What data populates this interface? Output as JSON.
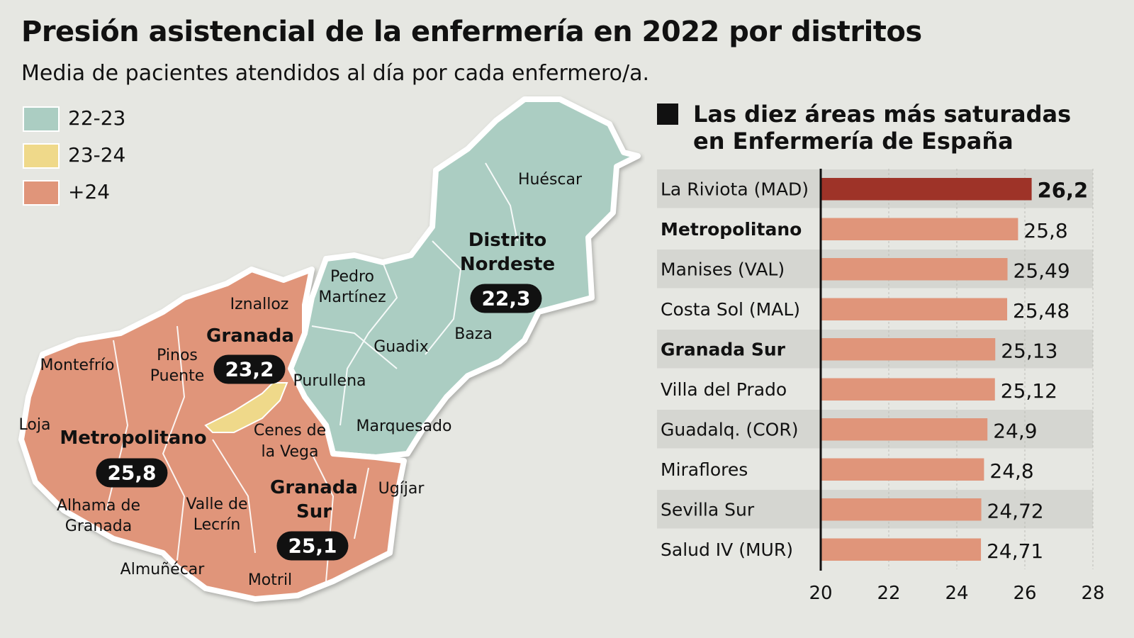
{
  "title": "Presión asistencial de la enfermería en 2022 por distritos",
  "subtitle": "Media de pacientes atendidos al día por cada enfermero/a.",
  "legend": [
    {
      "label": "22-23",
      "color": "#abcdc2"
    },
    {
      "label": "23-24",
      "color": "#efd98a"
    },
    {
      "label": "+24",
      "color": "#e0957a"
    }
  ],
  "map": {
    "districts": [
      {
        "name": "Distrito Nordeste",
        "line1": "Distrito",
        "line2": "Nordeste",
        "value": "22,3"
      },
      {
        "name": "Granada",
        "value": "23,2"
      },
      {
        "name": "Metropolitano",
        "value": "25,8"
      },
      {
        "name": "Granada Sur",
        "line1": "Granada",
        "line2": "Sur",
        "value": "25,1"
      }
    ],
    "places": {
      "huescar": "Huéscar",
      "pedro1": "Pedro",
      "pedro2": "Martínez",
      "iznalloz": "Iznalloz",
      "baza": "Baza",
      "guadix": "Guadix",
      "pinos1": "Pinos",
      "pinos2": "Puente",
      "montefrio": "Montefrío",
      "purullena": "Purullena",
      "loja": "Loja",
      "cenes1": "Cenes de",
      "cenes2": "la Vega",
      "marquesado": "Marquesado",
      "alhama1": "Alhama de",
      "alhama2": "Granada",
      "valle1": "Valle de",
      "valle2": "Lecrín",
      "ugijar": "Ugíjar",
      "almunecar": "Almuñécar",
      "motril": "Motril"
    }
  },
  "chart_data": {
    "type": "bar",
    "orientation": "horizontal",
    "title": "Las diez áreas más saturadas en Enfermería de España",
    "title_line1": "Las diez áreas más saturadas",
    "title_line2": "en Enfermería de España",
    "categories": [
      "La Riviota (MAD)",
      "Metropolitano",
      "Manises (VAL)",
      "Costa Sol (MAL)",
      "Granada Sur",
      "Villa del Prado",
      "Guadalq. (COR)",
      "Miraflores",
      "Sevilla Sur",
      "Salud IV (MUR)"
    ],
    "values": [
      26.2,
      25.8,
      25.49,
      25.48,
      25.13,
      25.12,
      24.9,
      24.8,
      24.72,
      24.71
    ],
    "value_labels": [
      "26,2",
      "25,8",
      "25,49",
      "25,48",
      "25,13",
      "25,12",
      "24,9",
      "24,8",
      "24,72",
      "24,71"
    ],
    "bold_categories": [
      "Metropolitano",
      "Granada Sur"
    ],
    "xlim": [
      20,
      28
    ],
    "xticks": [
      "20",
      "22",
      "24",
      "26",
      "28"
    ],
    "highlight_color": "#9e3328",
    "bar_color": "#e0957a",
    "grid": true
  }
}
